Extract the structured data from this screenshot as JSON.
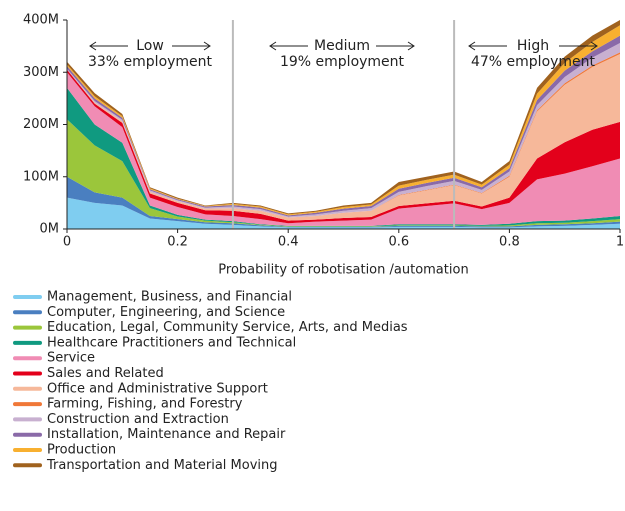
{
  "chart_data": {
    "type": "stacked_area",
    "x_label": "Probability of robotisation /automation",
    "x": [
      0,
      0.05,
      0.1,
      0.15,
      0.2,
      0.25,
      0.3,
      0.35,
      0.4,
      0.45,
      0.5,
      0.55,
      0.6,
      0.65,
      0.7,
      0.75,
      0.8,
      0.85,
      0.9,
      0.95,
      1
    ],
    "xlim": [
      0,
      1
    ],
    "xticks": [
      0,
      0.2,
      0.4,
      0.6,
      0.8,
      1
    ],
    "ylim": [
      0,
      400
    ],
    "yticks": [
      {
        "value": 0,
        "label": "0M"
      },
      {
        "value": 100,
        "label": "100M"
      },
      {
        "value": 200,
        "label": "200M"
      },
      {
        "value": 300,
        "label": "300M"
      },
      {
        "value": 400,
        "label": "400M"
      }
    ],
    "vlines": [
      0.3,
      0.7
    ],
    "annotations": [
      "Low",
      "33% employment",
      "Medium",
      "19% employment",
      "High",
      "47% employment"
    ],
    "series": [
      {
        "name": "Management, Business, and Financial",
        "color": "#7fcdf0",
        "values": [
          60,
          50,
          45,
          20,
          15,
          10,
          8,
          5,
          3,
          3,
          3,
          3,
          4,
          4,
          4,
          3,
          3,
          5,
          6,
          8,
          10
        ]
      },
      {
        "name": "Computer, Engineering, and Science",
        "color": "#4a7fc0",
        "values": [
          40,
          20,
          15,
          5,
          4,
          3,
          3,
          2,
          1,
          1,
          1,
          1,
          2,
          2,
          2,
          2,
          2,
          3,
          3,
          3,
          4
        ]
      },
      {
        "name": "Education, Legal, Community Service, Arts, and Medias",
        "color": "#9bc63b",
        "values": [
          110,
          90,
          70,
          15,
          5,
          3,
          2,
          1,
          1,
          1,
          1,
          1,
          1,
          1,
          1,
          1,
          2,
          3,
          3,
          4,
          5
        ]
      },
      {
        "name": "Healthcare Practitioners and Technical",
        "color": "#109a80",
        "values": [
          60,
          40,
          35,
          5,
          3,
          2,
          2,
          1,
          1,
          1,
          1,
          1,
          2,
          2,
          2,
          2,
          3,
          4,
          4,
          5,
          6
        ]
      },
      {
        "name": "Service",
        "color": "#f08cb4",
        "values": [
          30,
          35,
          30,
          15,
          15,
          10,
          10,
          10,
          5,
          8,
          10,
          12,
          30,
          35,
          40,
          30,
          40,
          80,
          90,
          100,
          110
        ]
      },
      {
        "name": "Sales and Related",
        "color": "#e3001b",
        "values": [
          5,
          5,
          8,
          8,
          8,
          8,
          10,
          10,
          5,
          4,
          5,
          5,
          5,
          5,
          5,
          5,
          10,
          40,
          60,
          70,
          70
        ]
      },
      {
        "name": "Office and Administrative Support",
        "color": "#f6b89a",
        "values": [
          0,
          2,
          3,
          3,
          3,
          3,
          5,
          6,
          6,
          7,
          10,
          12,
          20,
          25,
          30,
          25,
          40,
          90,
          110,
          120,
          130
        ]
      },
      {
        "name": "Farming, Fishing, and Forestry",
        "color": "#f07838",
        "values": [
          0,
          0,
          0,
          0,
          0,
          0,
          0,
          0,
          0,
          0,
          0,
          0,
          1,
          1,
          1,
          1,
          2,
          2,
          3,
          3,
          3
        ]
      },
      {
        "name": "Construction and Extraction",
        "color": "#c8b0d0",
        "values": [
          2,
          3,
          3,
          3,
          2,
          2,
          3,
          3,
          2,
          3,
          4,
          5,
          6,
          7,
          7,
          6,
          8,
          10,
          12,
          15,
          18
        ]
      },
      {
        "name": "Installation, Maintenance and Repair",
        "color": "#8a6aa8",
        "values": [
          5,
          5,
          4,
          2,
          2,
          2,
          3,
          3,
          2,
          3,
          4,
          4,
          6,
          6,
          6,
          5,
          6,
          10,
          12,
          12,
          14
        ]
      },
      {
        "name": "Production",
        "color": "#f8b030",
        "values": [
          3,
          4,
          3,
          2,
          1,
          1,
          2,
          2,
          2,
          2,
          3,
          3,
          6,
          6,
          6,
          5,
          7,
          12,
          15,
          18,
          20
        ]
      },
      {
        "name": "Transportation and Material Moving",
        "color": "#a0621e",
        "values": [
          5,
          6,
          4,
          2,
          2,
          1,
          2,
          2,
          2,
          2,
          3,
          3,
          7,
          6,
          6,
          5,
          7,
          11,
          12,
          12,
          10
        ]
      }
    ]
  }
}
